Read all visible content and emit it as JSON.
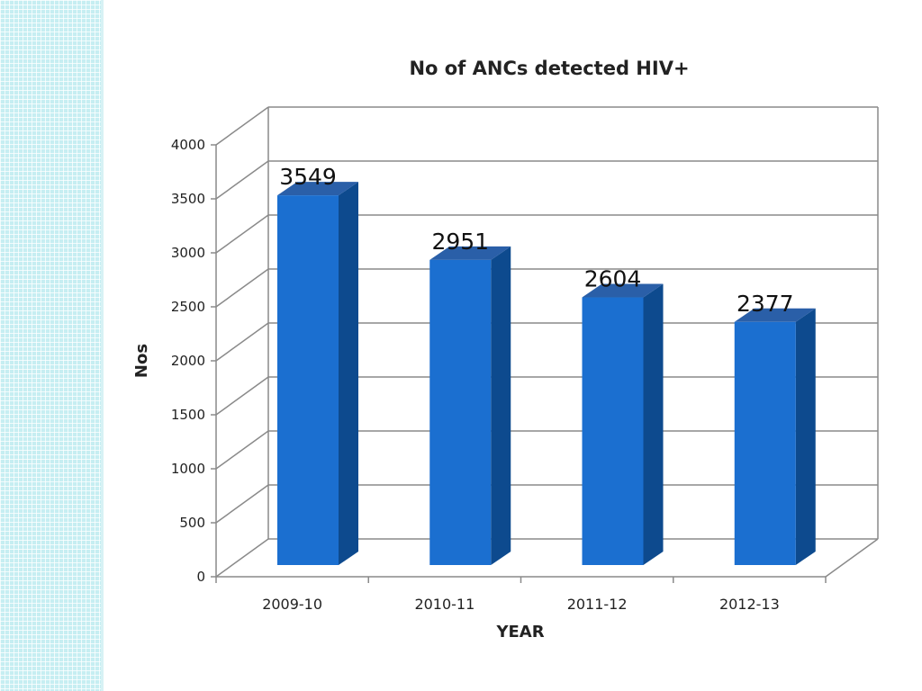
{
  "chart_data": {
    "type": "bar",
    "title": "No of ANCs detected HIV+",
    "xlabel": "YEAR",
    "ylabel": "Nos",
    "categories": [
      "2009-10",
      "2010-11",
      "2011-12",
      "2012-13"
    ],
    "values": [
      3549,
      2951,
      2604,
      2377
    ],
    "data_labels": [
      "3549",
      "2951",
      "2604",
      "2377"
    ],
    "yticks": [
      "0",
      "500",
      "1000",
      "1500",
      "2000",
      "2500",
      "3000",
      "3500",
      "4000"
    ],
    "ylim": [
      0,
      4000
    ],
    "grid": true,
    "legend": false,
    "colors": {
      "bar_front": "#1b6fd0",
      "bar_side": "#0d4a8e",
      "bar_top": "#2a5fa8",
      "grid": "#8a8a8a"
    }
  }
}
